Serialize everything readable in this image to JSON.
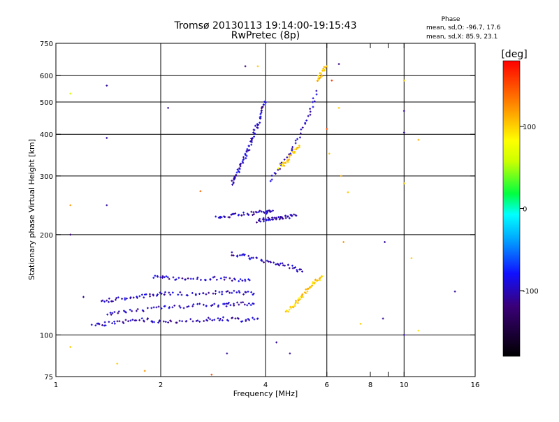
{
  "chart_data": {
    "type": "scatter",
    "title": "Tromsø 20130113 19:14:00-19:15:43",
    "subtitle": "RwPretec (8p)",
    "xlabel": "Frequency [MHz]",
    "ylabel": "Stationary phase Virtual Height [km]",
    "x_scale": "log",
    "y_scale": "log",
    "xlim": [
      1,
      16
    ],
    "ylim": [
      75,
      750
    ],
    "x_ticks": [
      1,
      2,
      4,
      6,
      8,
      9,
      10,
      16
    ],
    "x_tick_labels": [
      "1",
      "2",
      "4",
      "6",
      "8",
      "10",
      "16"
    ],
    "x_tick_label_values": [
      1,
      2,
      4,
      6,
      8,
      10,
      16
    ],
    "x_gridlines": [
      2,
      4,
      6,
      10
    ],
    "y_ticks": [
      75,
      100,
      200,
      300,
      400,
      500,
      600,
      750
    ],
    "y_tick_labels": [
      "75",
      "100",
      "200",
      "300",
      "400",
      "500",
      "600",
      "750"
    ],
    "y_gridlines": [
      100,
      200,
      300,
      400,
      500,
      600
    ],
    "phase_stats": {
      "heading": "Phase",
      "line_o": "mean, sd,O: -96.7, 17.6",
      "line_x": "mean, sd,X:  85.9, 23.1"
    },
    "colorbar": {
      "unit_label": "[deg]",
      "range": [
        -180,
        180
      ],
      "ticks": [
        100,
        0,
        -100
      ],
      "tick_labels": [
        "100",
        "0",
        "-100"
      ]
    },
    "traces": [
      {
        "name": "",
        "phase": -100,
        "x": [
          1.28,
          1.4,
          1.6,
          1.8,
          2.0,
          2.3,
          2.7,
          3.0,
          3.4,
          3.8
        ],
        "y": [
          108,
          108,
          110,
          111,
          110,
          110,
          111,
          112,
          111,
          112
        ]
      },
      {
        "name": "",
        "phase": -100,
        "x": [
          1.4,
          1.6,
          1.9,
          2.2,
          2.6,
          3.0,
          3.3,
          3.7
        ],
        "y": [
          116,
          118,
          120,
          121,
          123,
          123,
          124,
          124
        ]
      },
      {
        "name": "",
        "phase": -100,
        "x": [
          1.35,
          1.5,
          1.7,
          1.9,
          2.1,
          2.5,
          2.9,
          3.3,
          3.7
        ],
        "y": [
          126,
          128,
          130,
          132,
          133,
          133,
          134,
          134,
          133
        ]
      },
      {
        "name": "",
        "phase": -100,
        "x": [
          1.9,
          2.1,
          2.4,
          2.8,
          3.2,
          3.6
        ],
        "y": [
          150,
          148,
          147,
          148,
          147,
          146
        ]
      },
      {
        "name": "",
        "phase": -100,
        "x": [
          3.2,
          3.5,
          3.9,
          4.3,
          4.7,
          5.1
        ],
        "y": [
          175,
          172,
          168,
          164,
          160,
          155
        ]
      },
      {
        "name": "",
        "phase": -100,
        "x": [
          2.9,
          3.1,
          3.4,
          3.7,
          4.0,
          4.2
        ],
        "y": [
          225,
          228,
          230,
          232,
          234,
          236
        ]
      },
      {
        "name": "",
        "phase": -100,
        "x": [
          3.2,
          3.3,
          3.4,
          3.5,
          3.6,
          3.7,
          3.8,
          3.9,
          4.0
        ],
        "y": [
          285,
          300,
          320,
          345,
          370,
          400,
          430,
          470,
          500
        ]
      },
      {
        "name": "",
        "phase": -100,
        "x": [
          4.1,
          4.5,
          4.9,
          5.3,
          5.6
        ],
        "y": [
          290,
          330,
          380,
          450,
          540
        ]
      },
      {
        "name": "",
        "phase": -100,
        "x": [
          3.8,
          4.0,
          4.2,
          4.4,
          4.6,
          4.9
        ],
        "y": [
          220,
          222,
          222,
          224,
          226,
          228
        ]
      },
      {
        "name": "",
        "phase": 100,
        "x": [
          4.6,
          4.8,
          5.0,
          5.2,
          5.4,
          5.6,
          5.8
        ],
        "y": [
          118,
          122,
          128,
          135,
          140,
          146,
          150
        ]
      },
      {
        "name": "",
        "phase": 100,
        "x": [
          4.4,
          4.6,
          4.8,
          5.0
        ],
        "y": [
          320,
          330,
          350,
          370
        ]
      },
      {
        "name": "",
        "phase": 100,
        "x": [
          5.6,
          5.8,
          6.0
        ],
        "y": [
          580,
          610,
          640
        ]
      }
    ],
    "scattered_points": [
      {
        "x": 1.1,
        "y": 200,
        "phase": -120
      },
      {
        "x": 1.1,
        "y": 530,
        "phase": 60
      },
      {
        "x": 1.4,
        "y": 560,
        "phase": -110
      },
      {
        "x": 1.4,
        "y": 390,
        "phase": -110
      },
      {
        "x": 1.4,
        "y": 245,
        "phase": -110
      },
      {
        "x": 1.1,
        "y": 245,
        "phase": 120
      },
      {
        "x": 1.2,
        "y": 130,
        "phase": -110
      },
      {
        "x": 1.1,
        "y": 92,
        "phase": 100
      },
      {
        "x": 1.5,
        "y": 82,
        "phase": 100
      },
      {
        "x": 2.1,
        "y": 480,
        "phase": -110
      },
      {
        "x": 2.6,
        "y": 270,
        "phase": 140
      },
      {
        "x": 3.5,
        "y": 640,
        "phase": -120
      },
      {
        "x": 3.8,
        "y": 640,
        "phase": 100
      },
      {
        "x": 6.5,
        "y": 650,
        "phase": -120
      },
      {
        "x": 6.2,
        "y": 580,
        "phase": 160
      },
      {
        "x": 6.5,
        "y": 480,
        "phase": 100
      },
      {
        "x": 10.0,
        "y": 470,
        "phase": -110
      },
      {
        "x": 10.0,
        "y": 405,
        "phase": -110
      },
      {
        "x": 10.0,
        "y": 580,
        "phase": 100
      },
      {
        "x": 10.0,
        "y": 285,
        "phase": 100
      },
      {
        "x": 11.0,
        "y": 385,
        "phase": 110
      },
      {
        "x": 8.8,
        "y": 190,
        "phase": -110
      },
      {
        "x": 10.5,
        "y": 170,
        "phase": 100
      },
      {
        "x": 14.0,
        "y": 135,
        "phase": -110
      },
      {
        "x": 7.5,
        "y": 108,
        "phase": 100
      },
      {
        "x": 8.7,
        "y": 112,
        "phase": -110
      },
      {
        "x": 10.0,
        "y": 100,
        "phase": -110
      },
      {
        "x": 11.0,
        "y": 103,
        "phase": 90
      },
      {
        "x": 6.9,
        "y": 268,
        "phase": 100
      },
      {
        "x": 6.6,
        "y": 300,
        "phase": 110
      },
      {
        "x": 6.7,
        "y": 190,
        "phase": 120
      },
      {
        "x": 4.3,
        "y": 95,
        "phase": -110
      },
      {
        "x": 4.7,
        "y": 88,
        "phase": -110
      },
      {
        "x": 3.1,
        "y": 88,
        "phase": -110
      },
      {
        "x": 2.8,
        "y": 76,
        "phase": 150
      },
      {
        "x": 1.8,
        "y": 78,
        "phase": 120
      },
      {
        "x": 6.0,
        "y": 415,
        "phase": 150
      },
      {
        "x": 6.1,
        "y": 350,
        "phase": 100
      }
    ],
    "grid": true,
    "legend": "none"
  }
}
